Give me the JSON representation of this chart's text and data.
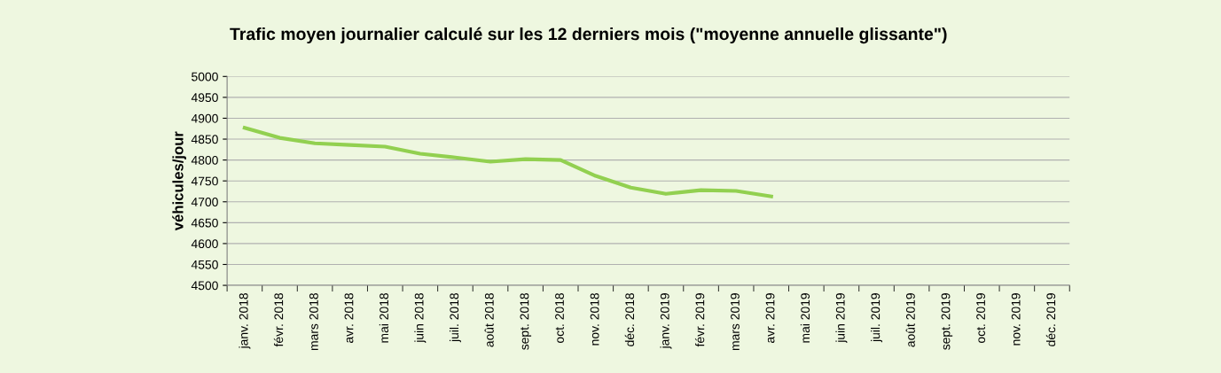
{
  "chart_data": {
    "type": "line",
    "title": "Trafic moyen journalier calculé sur les 12 derniers mois (\"moyenne annuelle glissante\")",
    "ylabel": "véhicules/jour",
    "categories": [
      "janv. 2018",
      "févr. 2018",
      "mars 2018",
      "avr. 2018",
      "mai 2018",
      "juin 2018",
      "juil. 2018",
      "août 2018",
      "sept. 2018",
      "oct. 2018",
      "nov. 2018",
      "déc. 2018",
      "janv. 2019",
      "févr. 2019",
      "mars 2019",
      "avr. 2019",
      "mai 2019",
      "juin 2019",
      "juil. 2019",
      "août 2019",
      "sept. 2019",
      "oct. 2019",
      "nov. 2019",
      "déc. 2019"
    ],
    "series": [
      {
        "color": "#92d050",
        "values": [
          4877,
          4853,
          4840,
          4836,
          4832,
          4815,
          4806,
          4796,
          4802,
          4800,
          4762,
          4734,
          4719,
          4728,
          4726,
          4713,
          null,
          null,
          null,
          null,
          null,
          null,
          null,
          null
        ]
      }
    ],
    "ylim": [
      4500,
      5000
    ],
    "yticks": [
      4500,
      4550,
      4600,
      4650,
      4700,
      4750,
      4800,
      4850,
      4900,
      4950,
      5000
    ],
    "grid": "y",
    "legend": false,
    "marker": "none",
    "line_style": "solid"
  }
}
